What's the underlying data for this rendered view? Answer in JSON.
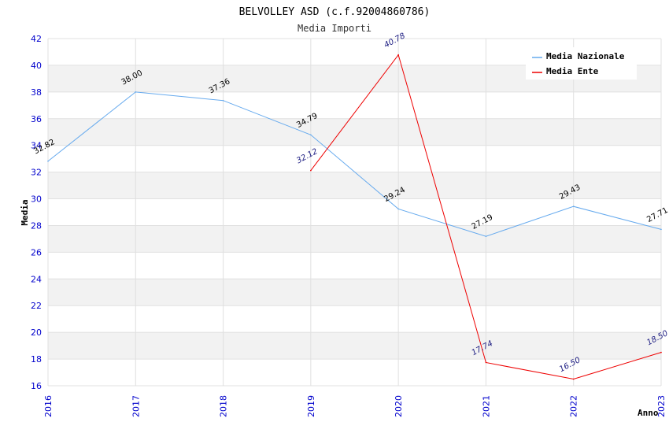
{
  "chart_data": {
    "type": "line",
    "title": "BELVOLLEY ASD (c.f.92004860786)",
    "subtitle": "Media Importi",
    "xlabel": "Anno",
    "ylabel": "Media",
    "ylim": [
      16,
      42
    ],
    "yticks": [
      "16",
      "18",
      "20",
      "22",
      "24",
      "26",
      "28",
      "30",
      "32",
      "34",
      "36",
      "38",
      "40",
      "42"
    ],
    "categories": [
      "2016",
      "2017",
      "2018",
      "2019",
      "2020",
      "2021",
      "2022",
      "2023"
    ],
    "legend_position": "top-right",
    "series": [
      {
        "name": "Media Nazionale",
        "color": "#66aaee",
        "values": [
          32.82,
          38.0,
          37.36,
          34.79,
          29.24,
          27.19,
          29.43,
          27.71
        ],
        "labels": [
          "32.82",
          "38.00",
          "37.36",
          "34.79",
          "29.24",
          "27.19",
          "29.43",
          "27.71"
        ]
      },
      {
        "name": "Media Ente",
        "color": "#ee0000",
        "values": [
          null,
          null,
          null,
          32.12,
          40.78,
          17.74,
          16.5,
          18.5
        ],
        "labels": [
          "",
          "",
          "",
          "32.12",
          "40.78",
          "17.74",
          "16.50",
          "18.50"
        ]
      }
    ]
  }
}
